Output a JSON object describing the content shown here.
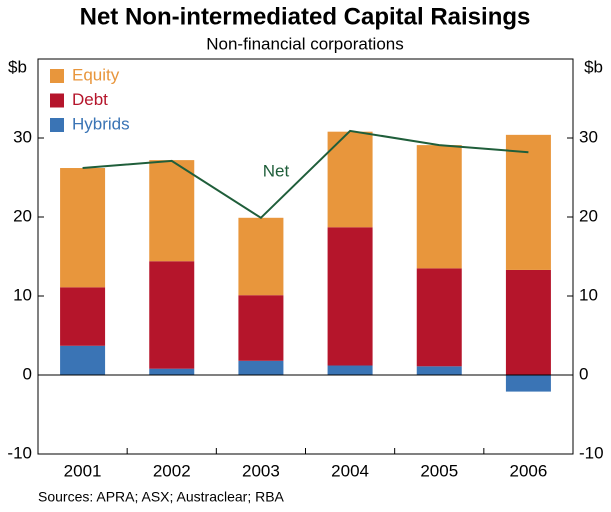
{
  "chart_data": {
    "type": "stacked-bar",
    "title": "Net Non-intermediated Capital Raisings",
    "subtitle": "Non-financial corporations",
    "y_unit": "$b",
    "source": "Sources: APRA; ASX; Austraclear; RBA",
    "categories": [
      "2001",
      "2002",
      "2003",
      "2004",
      "2005",
      "2006"
    ],
    "series": [
      {
        "name": "Equity",
        "color": "#e8963c",
        "values": [
          15.1,
          12.8,
          9.8,
          12.1,
          15.6,
          17.1
        ]
      },
      {
        "name": "Debt",
        "color": "#b5152b",
        "values": [
          7.4,
          13.6,
          8.3,
          17.5,
          12.4,
          13.3
        ]
      },
      {
        "name": "Hybrids",
        "color": "#3a74b5",
        "values": [
          3.7,
          0.8,
          1.8,
          1.2,
          1.1,
          -2.1
        ]
      }
    ],
    "line_series": {
      "name": "Net",
      "color": "#1f5e3a",
      "values": [
        26.2,
        27.1,
        19.9,
        30.9,
        29.1,
        28.2
      ]
    },
    "ylim": [
      -10,
      40
    ],
    "yticks": [
      -10,
      0,
      10,
      20,
      30
    ],
    "grid": false
  }
}
